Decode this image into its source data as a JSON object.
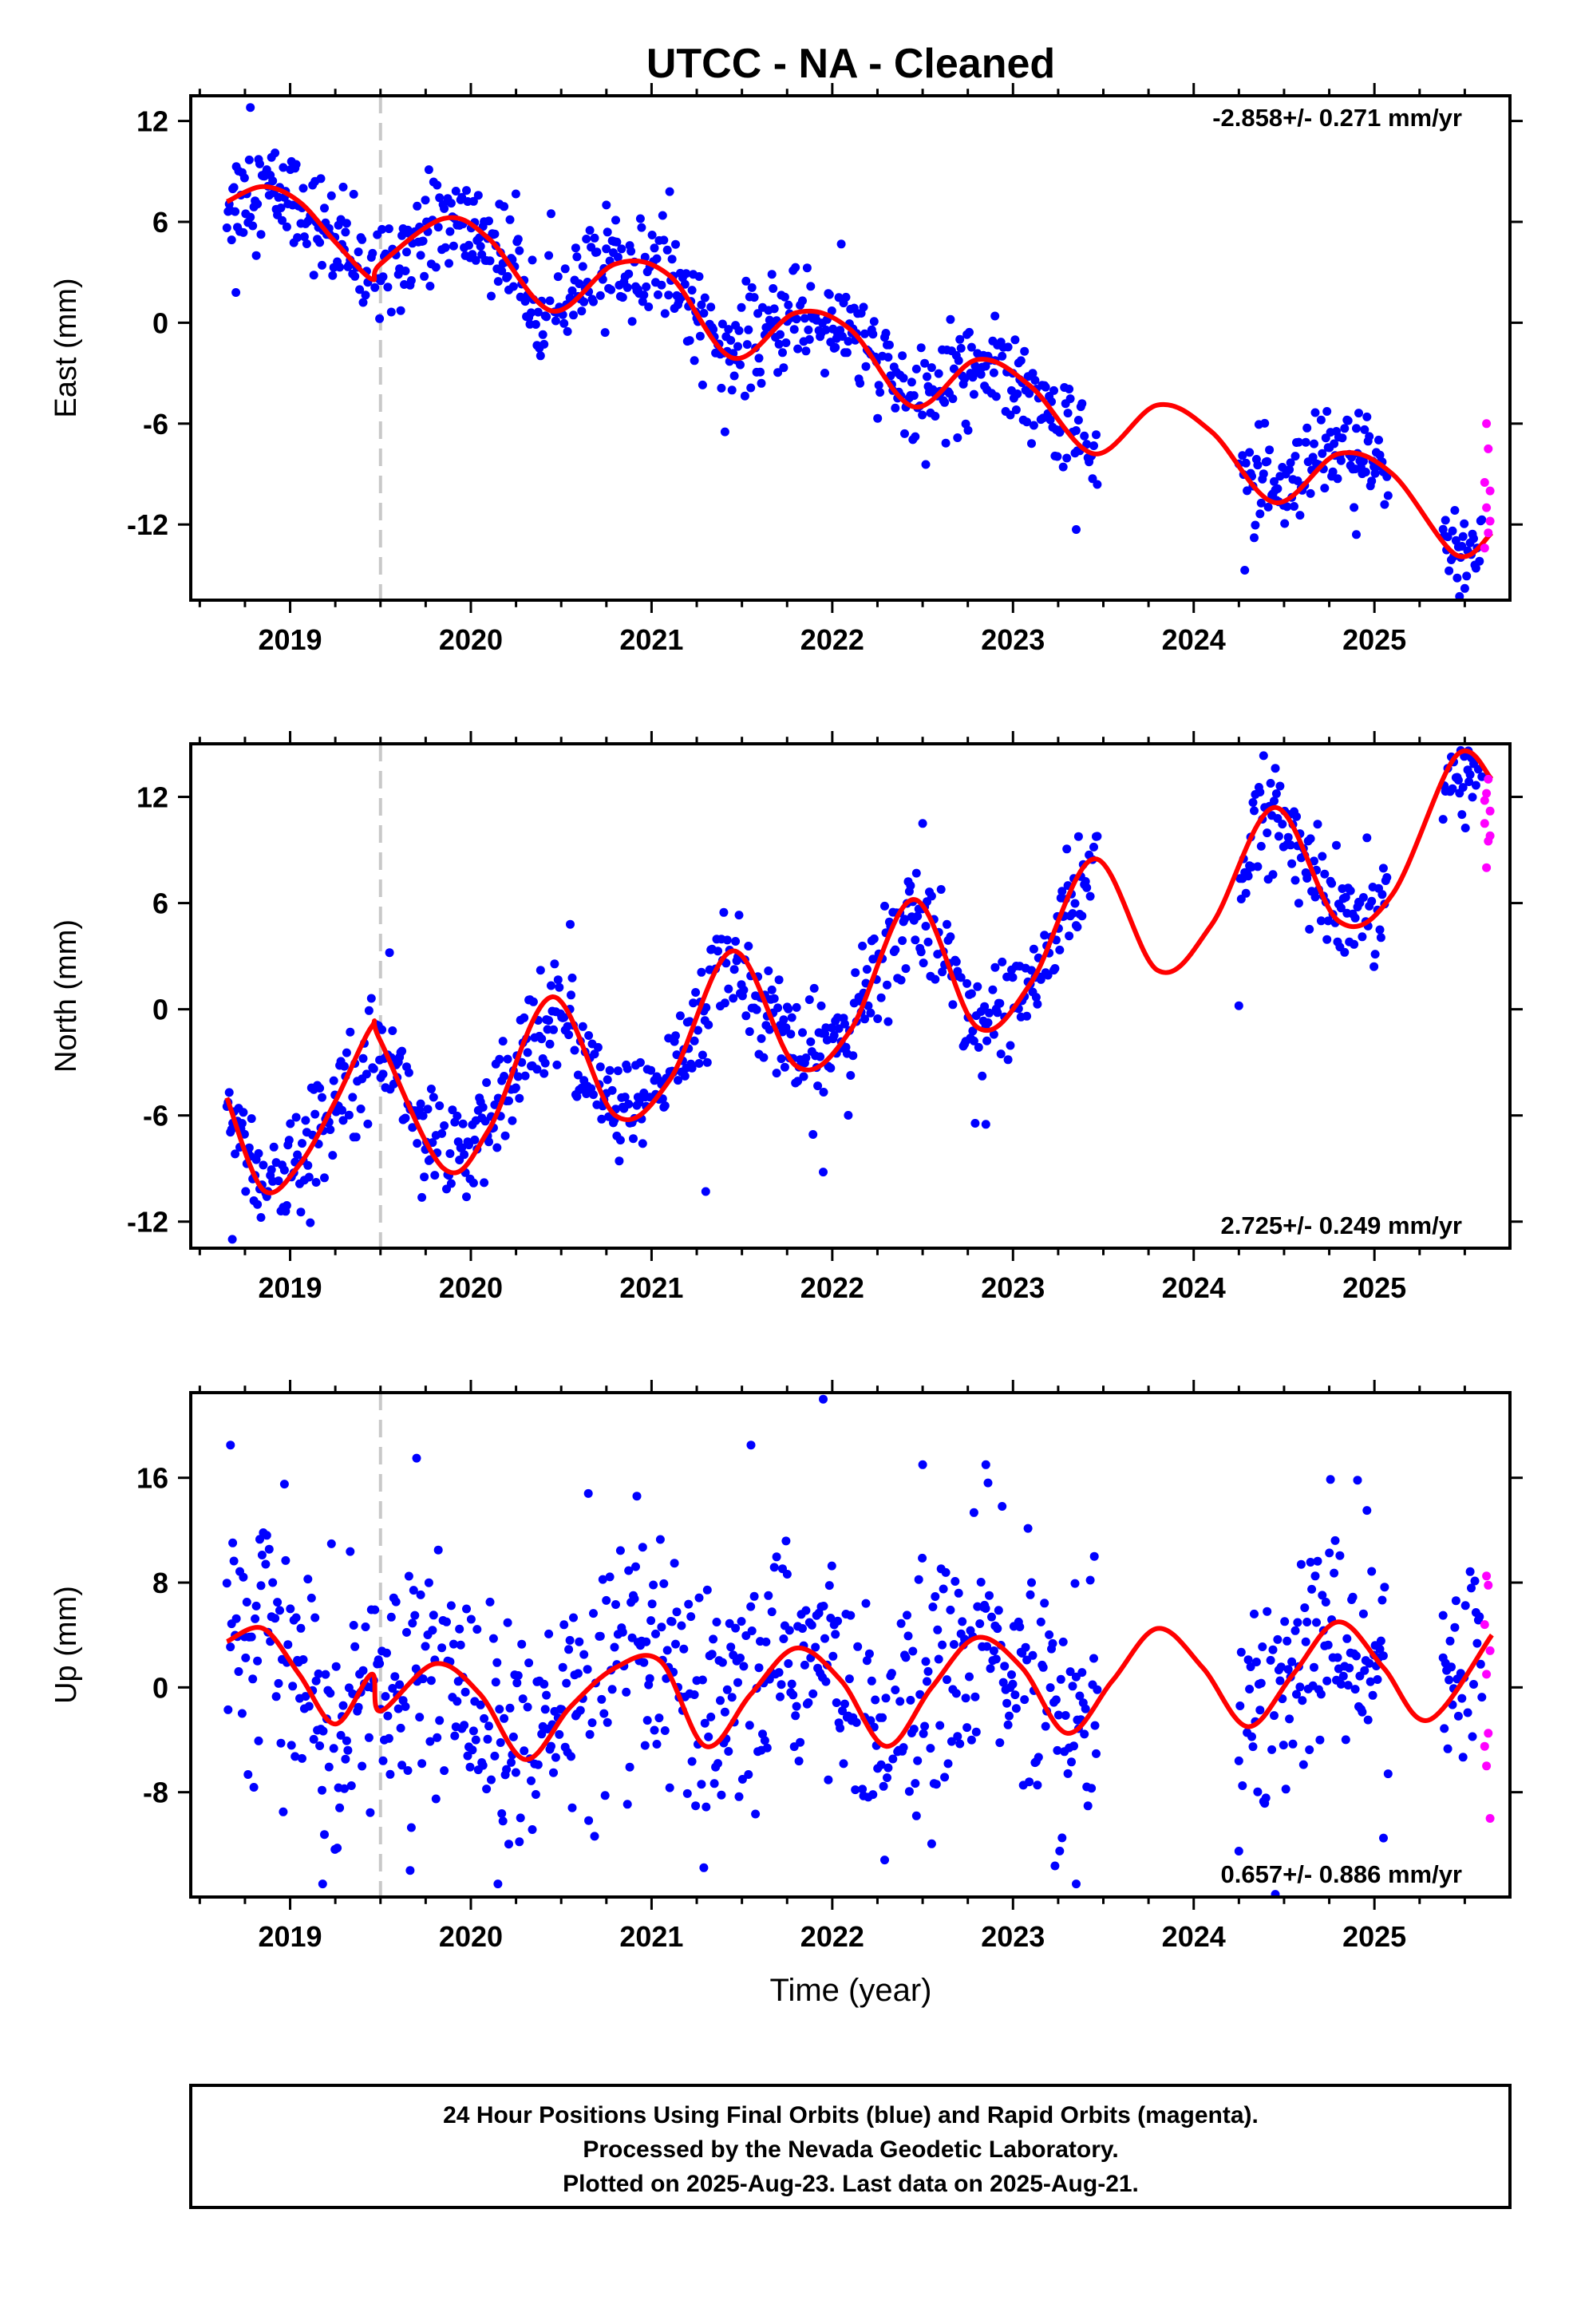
{
  "title": "UTCC  - NA - Cleaned",
  "x_axis_label": "Time (year)",
  "footer": {
    "line1": "24 Hour Positions Using Final Orbits (blue) and Rapid Orbits (magenta).",
    "line2": "Processed by the Nevada Geodetic Laboratory.",
    "line3": "Plotted on 2025-Aug-23. Last data on 2025-Aug-21."
  },
  "colors": {
    "final_orbits": "#0000ff",
    "rapid_orbits": "#ff00ff",
    "model_fit": "#ff0000",
    "event_line": "#c8c8c8"
  },
  "chart_data": [
    {
      "type": "scatter",
      "component": "East",
      "ylabel": "East (mm)",
      "rate_label": "-2.858+/- 0.271 mm/yr",
      "rate_position": "top-right",
      "xlim": [
        2018.45,
        2025.75
      ],
      "ylim": [
        -16.5,
        13.5
      ],
      "yticks": [
        -12,
        -6,
        0,
        6,
        12
      ],
      "xticks": [
        2019,
        2020,
        2021,
        2022,
        2023,
        2024,
        2025
      ],
      "event_line_x": 2019.5,
      "model_fit": {
        "x": [
          2018.65,
          2018.85,
          2019.05,
          2019.25,
          2019.45,
          2019.5,
          2019.85,
          2020.1,
          2020.45,
          2020.8,
          2021.1,
          2021.45,
          2021.8,
          2022.1,
          2022.45,
          2022.8,
          2023.1,
          2023.45,
          2023.8,
          2024.1,
          2024.45,
          2024.8,
          2025.1,
          2025.45,
          2025.65
        ],
        "y": [
          7.2,
          8.1,
          7.2,
          4.8,
          2.6,
          3.5,
          6.2,
          5.0,
          0.7,
          3.5,
          2.8,
          -2.1,
          0.6,
          -0.4,
          -5.0,
          -2.2,
          -3.8,
          -7.8,
          -4.9,
          -6.5,
          -10.7,
          -7.8,
          -9.0,
          -13.8,
          -12.5
        ]
      },
      "final_orbits": {
        "segments": [
          [
            2018.65,
            2023.47
          ],
          [
            2024.25,
            2025.08
          ],
          [
            2025.38,
            2025.6
          ]
        ],
        "spread": 1.5,
        "outliers": [
          [
            2018.78,
            12.8
          ],
          [
            2018.7,
            1.8
          ],
          [
            2020.75,
            7.0
          ],
          [
            2021.1,
            7.8
          ],
          [
            2022.9,
            0.4
          ],
          [
            2023.35,
            -12.3
          ],
          [
            2024.9,
            -12.6
          ],
          [
            2025.5,
            -15.8
          ]
        ]
      },
      "rapid_orbits": {
        "x_range": [
          2025.6,
          2025.64
        ],
        "points": [
          [
            2025.62,
            -6.0
          ],
          [
            2025.63,
            -7.5
          ],
          [
            2025.61,
            -9.5
          ],
          [
            2025.64,
            -10.0
          ],
          [
            2025.62,
            -11.0
          ],
          [
            2025.63,
            -12.5
          ],
          [
            2025.61,
            -13.4
          ],
          [
            2025.64,
            -11.8
          ]
        ]
      }
    },
    {
      "type": "scatter",
      "component": "North",
      "ylabel": "North (mm)",
      "rate_label": "2.725+/- 0.249 mm/yr",
      "rate_position": "bottom-right",
      "xlim": [
        2018.45,
        2025.75
      ],
      "ylim": [
        -13.5,
        15.0
      ],
      "yticks": [
        -12,
        -6,
        0,
        6,
        12
      ],
      "xticks": [
        2019,
        2020,
        2021,
        2022,
        2023,
        2024,
        2025
      ],
      "event_line_x": 2019.5,
      "model_fit": {
        "x": [
          2018.65,
          2018.85,
          2019.05,
          2019.25,
          2019.45,
          2019.5,
          2019.85,
          2020.1,
          2020.45,
          2020.8,
          2021.1,
          2021.45,
          2021.8,
          2022.1,
          2022.45,
          2022.8,
          2023.1,
          2023.45,
          2023.8,
          2024.1,
          2024.45,
          2024.8,
          2025.1,
          2025.45,
          2025.65
        ],
        "y": [
          -5.0,
          -10.2,
          -8.8,
          -5.2,
          -1.0,
          -1.8,
          -9.0,
          -6.8,
          0.7,
          -6.0,
          -4.0,
          3.3,
          -3.2,
          -1.2,
          6.2,
          -1.0,
          1.5,
          8.5,
          2.2,
          4.8,
          11.4,
          5.0,
          6.5,
          14.3,
          13.0
        ]
      },
      "final_orbits": {
        "segments": [
          [
            2018.65,
            2023.47
          ],
          [
            2024.25,
            2025.08
          ],
          [
            2025.38,
            2025.6
          ]
        ],
        "spread": 1.5,
        "outliers": [
          [
            2018.68,
            -13.0
          ],
          [
            2019.55,
            3.2
          ],
          [
            2020.55,
            4.8
          ],
          [
            2021.3,
            -10.3
          ],
          [
            2021.95,
            -9.2
          ],
          [
            2022.85,
            -6.5
          ],
          [
            2022.5,
            10.5
          ],
          [
            2024.25,
            0.2
          ],
          [
            2025.52,
            14.6
          ]
        ]
      },
      "rapid_orbits": {
        "x_range": [
          2025.6,
          2025.64
        ],
        "points": [
          [
            2025.62,
            8.0
          ],
          [
            2025.63,
            9.5
          ],
          [
            2025.61,
            10.5
          ],
          [
            2025.64,
            11.2
          ],
          [
            2025.62,
            12.2
          ],
          [
            2025.63,
            13.0
          ],
          [
            2025.61,
            11.8
          ],
          [
            2025.64,
            9.8
          ]
        ]
      }
    },
    {
      "type": "scatter",
      "component": "Up",
      "ylabel": "Up (mm)",
      "rate_label": "0.657+/- 0.886 mm/yr",
      "rate_position": "bottom-right",
      "xlim": [
        2018.45,
        2025.75
      ],
      "ylim": [
        -16.0,
        22.5
      ],
      "yticks": [
        -8,
        0,
        8,
        16
      ],
      "xticks": [
        2019,
        2020,
        2021,
        2022,
        2023,
        2024,
        2025
      ],
      "event_line_x": 2019.5,
      "model_fit": {
        "x": [
          2018.65,
          2018.85,
          2019.05,
          2019.25,
          2019.45,
          2019.5,
          2019.8,
          2020.05,
          2020.3,
          2020.55,
          2020.8,
          2021.05,
          2021.3,
          2021.55,
          2021.8,
          2022.05,
          2022.3,
          2022.55,
          2022.8,
          2023.05,
          2023.3,
          2023.55,
          2023.8,
          2024.05,
          2024.3,
          2024.55,
          2024.8,
          2025.05,
          2025.3,
          2025.65
        ],
        "y": [
          3.5,
          4.5,
          1.0,
          -2.8,
          1.0,
          -1.8,
          1.8,
          -0.5,
          -5.5,
          -1.5,
          1.5,
          2.0,
          -4.5,
          -0.5,
          3.0,
          0.5,
          -4.5,
          0.0,
          3.8,
          1.5,
          -3.5,
          0.5,
          4.5,
          1.5,
          -3.0,
          1.0,
          5.0,
          1.5,
          -2.5,
          4.0
        ]
      },
      "final_orbits": {
        "segments": [
          [
            2018.65,
            2023.47
          ],
          [
            2024.25,
            2025.08
          ],
          [
            2025.38,
            2025.6
          ]
        ],
        "spread": 4.5,
        "outliers": [
          [
            2018.67,
            18.5
          ],
          [
            2019.18,
            -15.0
          ],
          [
            2019.7,
            17.5
          ],
          [
            2020.15,
            -15.0
          ],
          [
            2020.65,
            14.8
          ],
          [
            2021.55,
            18.5
          ],
          [
            2021.95,
            22.0
          ],
          [
            2022.5,
            17.0
          ],
          [
            2022.85,
            17.0
          ],
          [
            2023.35,
            -15.0
          ],
          [
            2023.45,
            10.0
          ],
          [
            2024.25,
            -12.5
          ],
          [
            2025.05,
            -11.5
          ],
          [
            2025.38,
            5.5
          ]
        ]
      },
      "rapid_orbits": {
        "x_range": [
          2025.6,
          2025.64
        ],
        "points": [
          [
            2025.62,
            8.5
          ],
          [
            2025.63,
            7.8
          ],
          [
            2025.61,
            4.8
          ],
          [
            2025.64,
            2.8
          ],
          [
            2025.62,
            1.0
          ],
          [
            2025.63,
            -3.5
          ],
          [
            2025.61,
            -4.5
          ],
          [
            2025.64,
            -10.0
          ],
          [
            2025.62,
            -6.0
          ]
        ]
      }
    }
  ]
}
